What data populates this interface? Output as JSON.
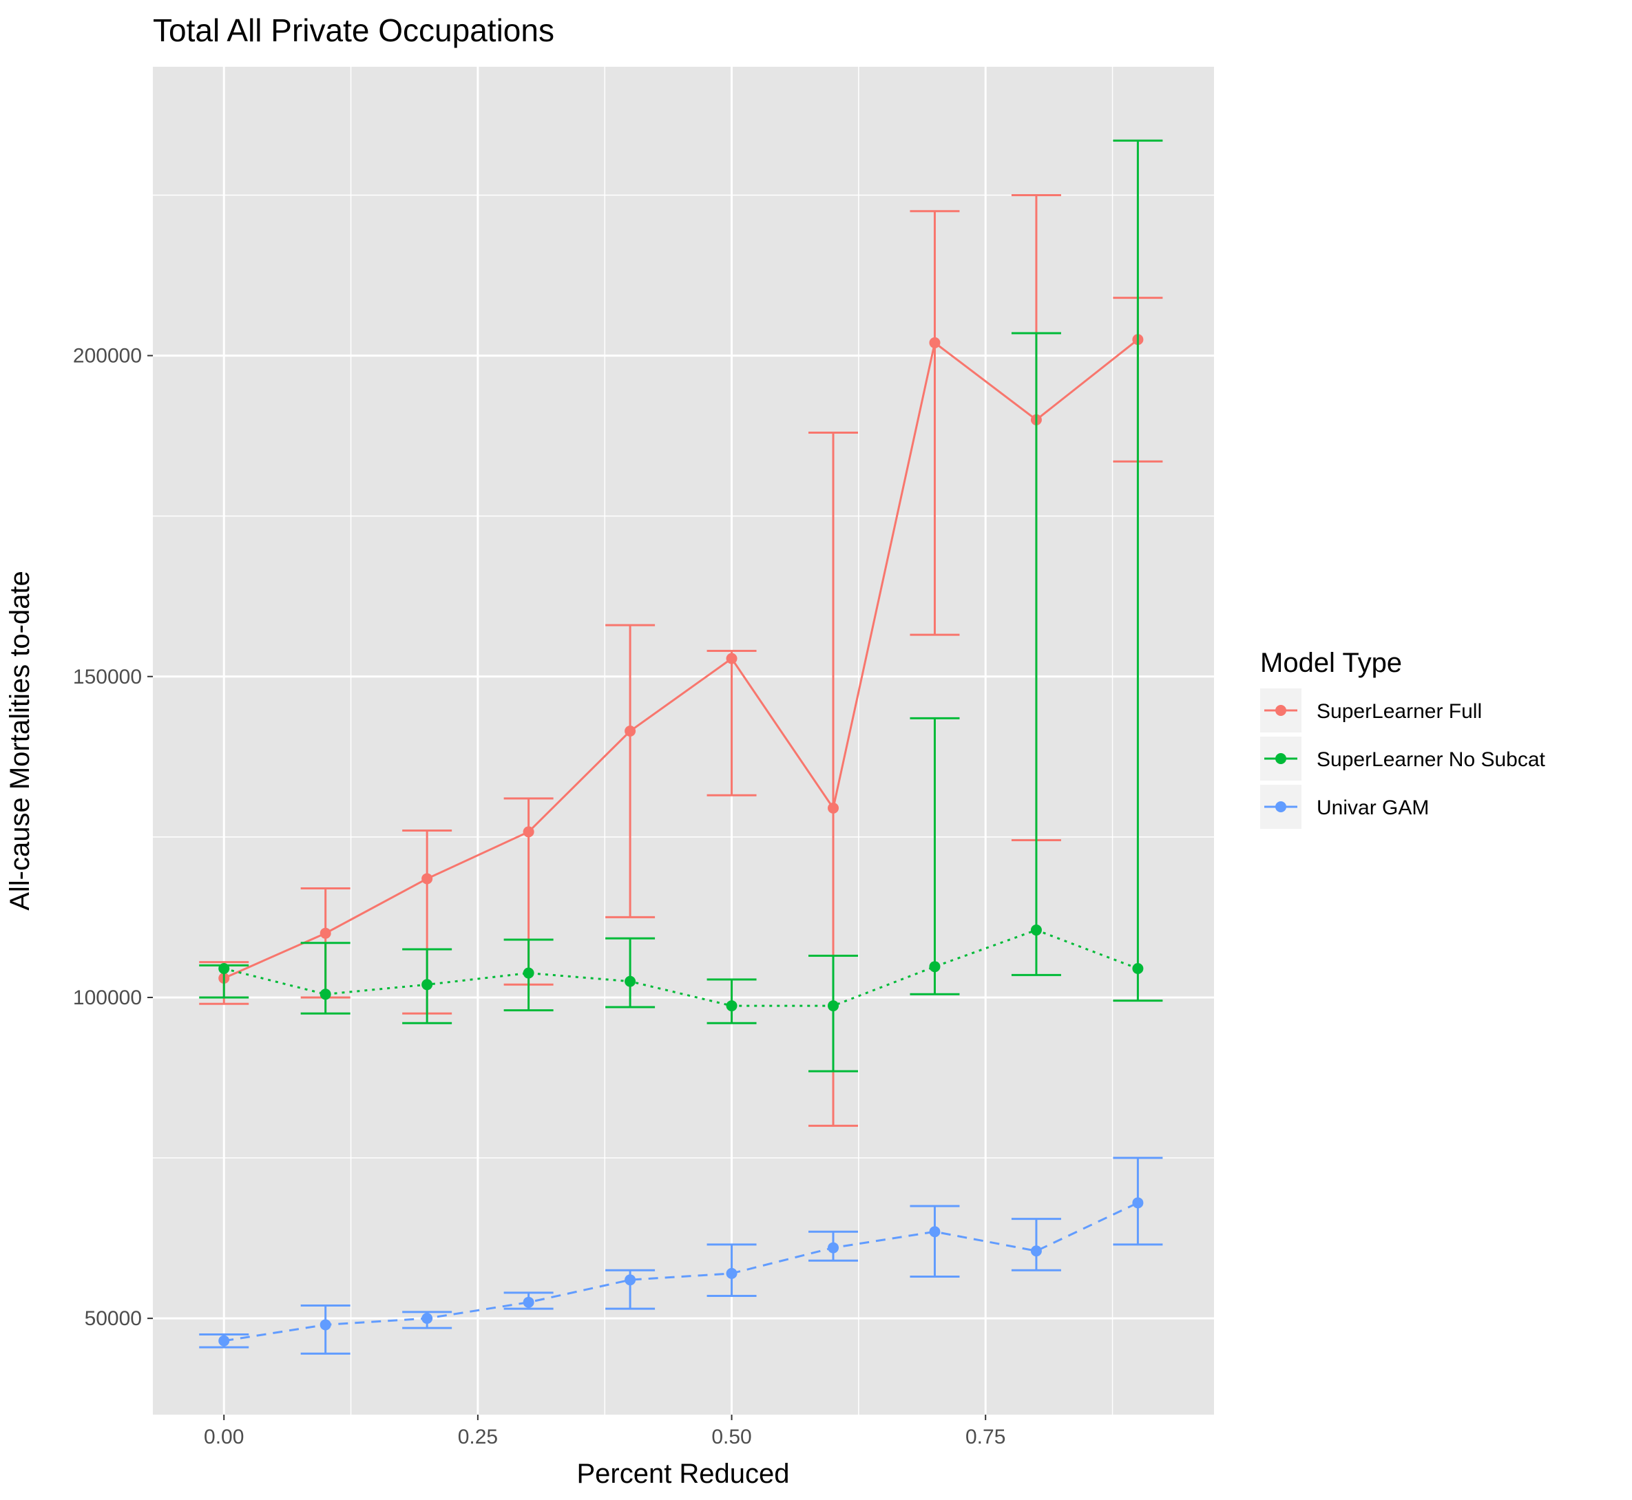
{
  "chart_data": {
    "type": "line",
    "title": "Total All Private Occupations",
    "xlabel": "Percent Reduced",
    "ylabel": "All-cause Mortalities to-date",
    "xlim": [
      -0.07,
      0.975
    ],
    "ylim": [
      35000,
      245000
    ],
    "x_ticks": [
      0.0,
      0.25,
      0.5,
      0.75
    ],
    "x_tick_labels": [
      "0.00",
      "0.25",
      "0.50",
      "0.75"
    ],
    "x_minor_ticks": [
      0.125,
      0.375,
      0.625,
      0.875
    ],
    "y_ticks": [
      50000,
      100000,
      150000,
      200000
    ],
    "y_tick_labels": [
      "50000",
      "100000",
      "150000",
      "200000"
    ],
    "y_minor_ticks": [
      75000,
      125000,
      175000,
      225000
    ],
    "grid": true,
    "background": "#e5e5e5",
    "legend": {
      "title": "Model Type",
      "position": "right"
    },
    "x": [
      0.0,
      0.1,
      0.2,
      0.3,
      0.4,
      0.5,
      0.6,
      0.7,
      0.8,
      0.9
    ],
    "series": [
      {
        "name": "SuperLearner Full",
        "color": "#F8766D",
        "linestyle": "solid",
        "values": [
          103000,
          110000,
          118500,
          125800,
          141500,
          152800,
          129500,
          202000,
          190000,
          202500
        ],
        "lower": [
          99000,
          100000,
          97500,
          102000,
          112500,
          131500,
          80000,
          156500,
          124500,
          183500
        ],
        "upper": [
          105500,
          117000,
          126000,
          131000,
          158000,
          154000,
          188000,
          222500,
          225000,
          209000
        ]
      },
      {
        "name": "SuperLearner No Subcat",
        "color": "#00BA38",
        "linestyle": "dotted",
        "values": [
          104500,
          100500,
          102000,
          103800,
          102500,
          98700,
          98700,
          104800,
          110500,
          104500
        ],
        "lower": [
          100000,
          97500,
          96000,
          98000,
          98500,
          96000,
          88500,
          100500,
          103500,
          99500
        ],
        "upper": [
          105000,
          108500,
          107500,
          109000,
          109200,
          102800,
          106500,
          143500,
          203500,
          233500
        ]
      },
      {
        "name": "Univar GAM",
        "color": "#619CFF",
        "linestyle": "dashed",
        "values": [
          46500,
          49000,
          50000,
          52500,
          56000,
          57000,
          61000,
          63500,
          60500,
          68000
        ],
        "lower": [
          45500,
          44500,
          48500,
          51500,
          51500,
          53500,
          59000,
          56500,
          57500,
          61500
        ],
        "upper": [
          47500,
          52000,
          51000,
          54000,
          57500,
          61500,
          63500,
          67500,
          65500,
          75000
        ]
      }
    ]
  }
}
